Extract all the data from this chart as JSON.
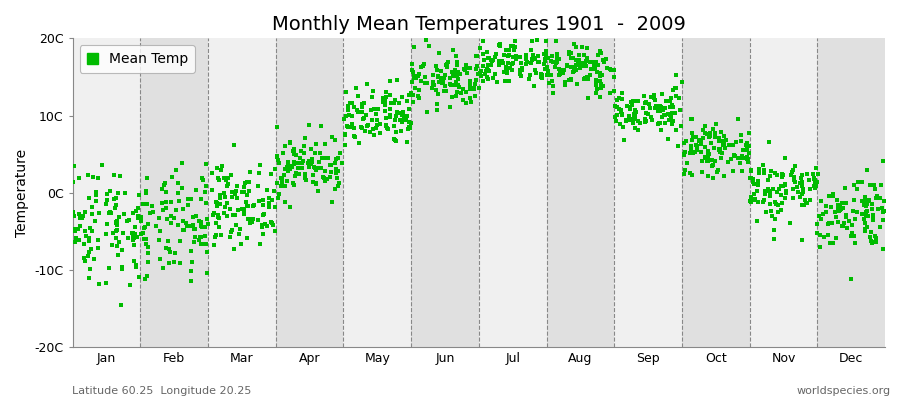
{
  "title": "Monthly Mean Temperatures 1901  -  2009",
  "ylabel": "Temperature",
  "bottom_left_text": "Latitude 60.25  Longitude 20.25",
  "bottom_right_text": "worldspecies.org",
  "legend_label": "Mean Temp",
  "months": [
    "Jan",
    "Feb",
    "Mar",
    "Apr",
    "May",
    "Jun",
    "Jul",
    "Aug",
    "Sep",
    "Oct",
    "Nov",
    "Dec"
  ],
  "month_means": [
    -4.0,
    -4.5,
    -1.5,
    3.5,
    9.5,
    14.5,
    17.0,
    16.0,
    10.5,
    5.5,
    0.5,
    -2.5
  ],
  "month_stds": [
    4.0,
    3.5,
    2.5,
    2.0,
    2.0,
    1.8,
    1.6,
    1.6,
    1.5,
    1.5,
    2.2,
    2.5
  ],
  "n_years": 109,
  "ylim": [
    -20,
    20
  ],
  "yticks": [
    -20,
    -10,
    0,
    10,
    20
  ],
  "ytick_labels": [
    "-20C",
    "-10C",
    "0C",
    "10C",
    "20C"
  ],
  "marker_color": "#00BB00",
  "marker_size": 2.5,
  "bg_light": "#F0F0F0",
  "bg_dark": "#E0E0E0",
  "figure_color": "#FFFFFF",
  "title_fontsize": 14,
  "axis_label_fontsize": 10,
  "tick_fontsize": 9,
  "annotation_fontsize": 8,
  "seed": 42,
  "days_per_month": [
    31,
    28,
    31,
    30,
    31,
    30,
    31,
    31,
    30,
    31,
    30,
    31
  ]
}
